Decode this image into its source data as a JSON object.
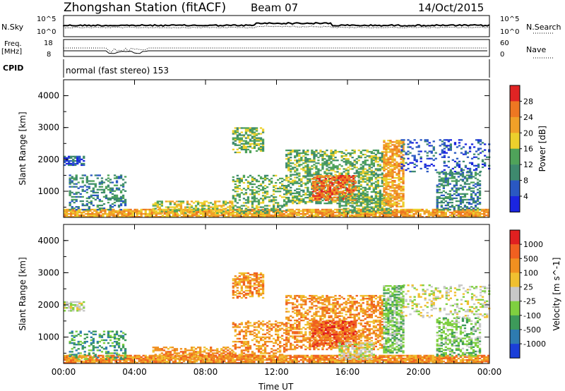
{
  "header": {
    "station": "Zhongshan Station (fitACF)",
    "beam": "Beam 07",
    "date": "14/Oct/2015"
  },
  "strip_labels": {
    "nsky": "N.Sky",
    "nsearch": "N.Search",
    "freq_line1": "Freq.",
    "freq_line2": "[MHz]",
    "nave": "Nave",
    "cpid": "CPID",
    "cpid_value": "normal (fast stereo) 153",
    "noise_tick_top": "10^5",
    "noise_tick_bottom": "10^0",
    "freq_tick_top": "18",
    "freq_tick_bottom": "8",
    "nave_tick_top": "60",
    "nave_tick_bottom": "0"
  },
  "chart_data": [
    {
      "type": "heatmap",
      "name": "power",
      "ylabel": "Slant Range [km]",
      "xlabel": "Time UT",
      "x_ticks": [
        "00:00",
        "04:00",
        "08:00",
        "12:00",
        "16:00",
        "20:00",
        "00:00"
      ],
      "y_ticks": [
        1000,
        2000,
        3000,
        4000
      ],
      "ylim": [
        180,
        4500
      ],
      "xlim_hours": [
        0,
        24
      ],
      "colorbar": {
        "label": "Power [dB]",
        "ticks": [
          "4",
          "8",
          "12",
          "16",
          "20",
          "24",
          "28"
        ],
        "colors": [
          "#1b25e0",
          "#2a58c2",
          "#3e8a6e",
          "#4fa35a",
          "#ecd02c",
          "#f0a028",
          "#ee7722",
          "#e02424"
        ]
      },
      "regions": [
        {
          "t0": 0.0,
          "t1": 24.0,
          "r0": 180,
          "r1": 420,
          "level": 5,
          "density": 0.85
        },
        {
          "t0": 0.0,
          "t1": 1.2,
          "r0": 1800,
          "r1": 2100,
          "level": 1,
          "density": 0.7
        },
        {
          "t0": 0.3,
          "t1": 3.5,
          "r0": 400,
          "r1": 1500,
          "level": 2,
          "density": 0.35
        },
        {
          "t0": 5.0,
          "t1": 9.5,
          "r0": 300,
          "r1": 700,
          "level": 4,
          "density": 0.55
        },
        {
          "t0": 9.5,
          "t1": 11.2,
          "r0": 2200,
          "r1": 3000,
          "level": 3,
          "density": 0.6
        },
        {
          "t0": 9.5,
          "t1": 12.5,
          "r0": 300,
          "r1": 1500,
          "level": 3,
          "density": 0.4
        },
        {
          "t0": 12.5,
          "t1": 18.0,
          "r0": 600,
          "r1": 2300,
          "level": 3,
          "density": 0.55
        },
        {
          "t0": 14.0,
          "t1": 16.5,
          "r0": 700,
          "r1": 1500,
          "level": 6,
          "density": 0.7
        },
        {
          "t0": 15.5,
          "t1": 18.5,
          "r0": 300,
          "r1": 900,
          "level": 3,
          "density": 0.6
        },
        {
          "t0": 18.0,
          "t1": 19.2,
          "r0": 500,
          "r1": 2600,
          "level": 5,
          "density": 0.7
        },
        {
          "t0": 21.0,
          "t1": 23.5,
          "r0": 400,
          "r1": 1600,
          "level": 2,
          "density": 0.5
        },
        {
          "t0": 19.0,
          "t1": 24.0,
          "r0": 1600,
          "r1": 2600,
          "level": 1,
          "density": 0.25
        }
      ]
    },
    {
      "type": "heatmap",
      "name": "velocity",
      "ylabel": "Slant Range [km]",
      "xlabel": "Time UT",
      "x_ticks": [
        "00:00",
        "04:00",
        "08:00",
        "12:00",
        "16:00",
        "20:00",
        "00:00"
      ],
      "y_ticks": [
        1000,
        2000,
        3000,
        4000
      ],
      "ylim": [
        180,
        4500
      ],
      "xlim_hours": [
        0,
        24
      ],
      "colorbar": {
        "label": "Velocity [m s^-1]",
        "ticks": [
          "1000",
          "500",
          "100",
          "25",
          "-25",
          "-100",
          "-500",
          "-1000"
        ],
        "colors": [
          "#1b3fd8",
          "#2e7bb0",
          "#3d9a5a",
          "#7fd040",
          "#c8c8c8",
          "#f0c030",
          "#f09020",
          "#f06020",
          "#e02020"
        ]
      },
      "regions": [
        {
          "t0": 0.0,
          "t1": 24.0,
          "r0": 180,
          "r1": 420,
          "level": 6,
          "density": 0.85
        },
        {
          "t0": 0.0,
          "t1": 1.2,
          "r0": 1800,
          "r1": 2100,
          "level": 4,
          "density": 0.7
        },
        {
          "t0": 0.3,
          "t1": 3.5,
          "r0": 300,
          "r1": 1200,
          "level": 2,
          "density": 0.35
        },
        {
          "t0": 5.0,
          "t1": 9.5,
          "r0": 300,
          "r1": 700,
          "level": 6,
          "density": 0.55
        },
        {
          "t0": 9.5,
          "t1": 11.2,
          "r0": 2200,
          "r1": 3000,
          "level": 6,
          "density": 0.6
        },
        {
          "t0": 9.5,
          "t1": 12.5,
          "r0": 300,
          "r1": 1500,
          "level": 6,
          "density": 0.4
        },
        {
          "t0": 12.5,
          "t1": 18.0,
          "r0": 600,
          "r1": 2300,
          "level": 6,
          "density": 0.55
        },
        {
          "t0": 14.0,
          "t1": 16.5,
          "r0": 700,
          "r1": 1500,
          "level": 7,
          "density": 0.7
        },
        {
          "t0": 15.5,
          "t1": 17.5,
          "r0": 300,
          "r1": 800,
          "level": 4,
          "density": 0.6
        },
        {
          "t0": 18.0,
          "t1": 19.2,
          "r0": 500,
          "r1": 2600,
          "level": 3,
          "density": 0.7
        },
        {
          "t0": 21.0,
          "t1": 23.5,
          "r0": 400,
          "r1": 1600,
          "level": 3,
          "density": 0.5
        },
        {
          "t0": 19.0,
          "t1": 24.0,
          "r0": 1600,
          "r1": 2600,
          "level": 4,
          "density": 0.25
        }
      ]
    }
  ]
}
